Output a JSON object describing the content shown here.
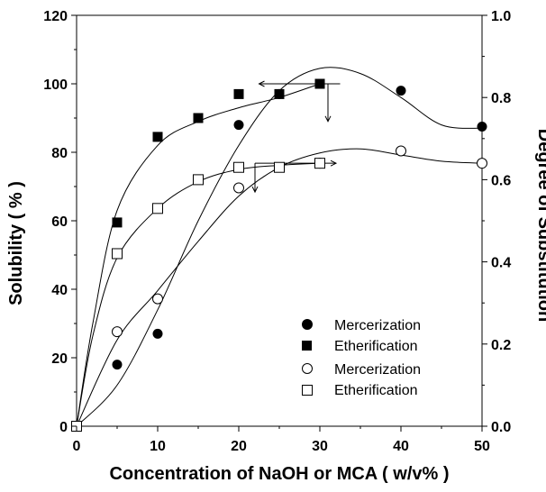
{
  "chart_data": {
    "type": "scatter",
    "title": "",
    "xlabel": "Concentration of NaOH or MCA ( w/v% )",
    "ylabel_left": "Solubility ( % )",
    "ylabel_right": "Degree of Substitution",
    "xlim": [
      0,
      50
    ],
    "ylim_left": [
      0,
      120
    ],
    "ylim_right": [
      0.0,
      1.0
    ],
    "x_ticks": [
      "0",
      "10",
      "20",
      "30",
      "40",
      "50"
    ],
    "y_left_ticks": [
      "0",
      "20",
      "40",
      "60",
      "80",
      "100",
      "120"
    ],
    "y_right_ticks": [
      "0.0",
      "0.2",
      "0.4",
      "0.6",
      "0.8",
      "1.0"
    ],
    "grid": false,
    "legend_position": "bottom-right",
    "series": [
      {
        "name": "Mercerization",
        "marker": "filled-circle",
        "axis": "left",
        "x": [
          0,
          5,
          10,
          20,
          25,
          30,
          40,
          50
        ],
        "y": [
          0,
          18,
          27,
          88,
          97,
          100,
          98,
          87.5
        ],
        "fit_curve": [
          [
            0,
            0
          ],
          [
            5,
            12
          ],
          [
            10,
            34
          ],
          [
            15,
            60
          ],
          [
            20,
            82
          ],
          [
            25,
            98
          ],
          [
            30,
            104.5
          ],
          [
            35,
            103
          ],
          [
            40,
            96
          ],
          [
            45,
            88
          ],
          [
            50,
            87
          ]
        ]
      },
      {
        "name": "Etherification",
        "marker": "filled-square",
        "axis": "left",
        "x": [
          0,
          5,
          10,
          15,
          20,
          25,
          30
        ],
        "y": [
          0,
          59.5,
          84.5,
          90,
          97,
          97,
          100
        ],
        "fit_curve": [
          [
            0,
            0
          ],
          [
            2,
            30
          ],
          [
            5,
            63
          ],
          [
            10,
            82
          ],
          [
            15,
            89
          ],
          [
            20,
            93
          ],
          [
            25,
            96
          ],
          [
            30,
            100
          ]
        ]
      },
      {
        "name": "Mercerization",
        "marker": "open-circle",
        "axis": "right",
        "x": [
          0,
          5,
          10,
          20,
          30,
          40,
          50
        ],
        "y": [
          0,
          0.23,
          0.31,
          0.58,
          0.64,
          0.67,
          0.64
        ],
        "fit_curve": [
          [
            0,
            0
          ],
          [
            5,
            0.21
          ],
          [
            10,
            0.33
          ],
          [
            15,
            0.45
          ],
          [
            20,
            0.56
          ],
          [
            25,
            0.63
          ],
          [
            30,
            0.665
          ],
          [
            35,
            0.675
          ],
          [
            40,
            0.66
          ],
          [
            45,
            0.645
          ],
          [
            50,
            0.64
          ]
        ]
      },
      {
        "name": "Etherification",
        "marker": "open-square",
        "axis": "right",
        "x": [
          0,
          5,
          10,
          15,
          20,
          25,
          30
        ],
        "y": [
          0,
          0.42,
          0.53,
          0.6,
          0.63,
          0.63,
          0.64
        ],
        "fit_curve": [
          [
            0,
            0
          ],
          [
            2,
            0.22
          ],
          [
            5,
            0.41
          ],
          [
            10,
            0.53
          ],
          [
            15,
            0.595
          ],
          [
            20,
            0.625
          ],
          [
            25,
            0.635
          ],
          [
            30,
            0.64
          ]
        ]
      }
    ],
    "annotations": [
      {
        "name": "upper-arrows",
        "points": [
          [
            32.5,
            100
          ],
          [
            22.5,
            100
          ]
        ],
        "down_x": 31,
        "down_to": 89
      },
      {
        "name": "lower-arrows",
        "points": [
          [
            22,
            0.64
          ],
          [
            32,
            0.64
          ]
        ],
        "down_x": 22,
        "down_to": 0.57
      }
    ]
  }
}
